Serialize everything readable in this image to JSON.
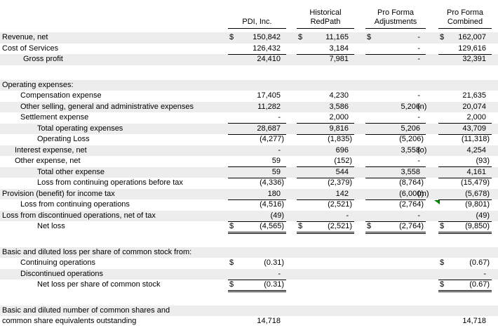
{
  "statement": {
    "columns": [
      {
        "l1": "",
        "l2": "PDI, Inc."
      },
      {
        "l1": "Historical",
        "l2": "RedPath"
      },
      {
        "l1": "Pro Forma",
        "l2": "Adjustments"
      },
      {
        "l1": "Pro Forma",
        "l2": "Combined"
      }
    ],
    "rows": [
      {
        "label": "Revenue, net",
        "ind": 3,
        "sh": 1,
        "d": [
          1,
          1,
          1,
          1
        ],
        "v": [
          "150,842",
          "11,165",
          "-",
          "162,007"
        ],
        "u": [
          0,
          0,
          0,
          0
        ]
      },
      {
        "label": "Cost of Services",
        "ind": 3,
        "sh": 0,
        "v": [
          "126,432",
          "3,184",
          "-",
          "129,616"
        ],
        "u": [
          1,
          1,
          1,
          1
        ]
      },
      {
        "label": "Gross profit",
        "ind": 33,
        "sh": 1,
        "v": [
          "24,410",
          "7,981",
          "-",
          "32,391"
        ],
        "u": [
          0,
          0,
          0,
          0
        ]
      },
      {
        "blank": true
      },
      {
        "label": "Operating expenses:",
        "ind": 3,
        "sh": 1,
        "v": [
          "",
          "",
          "",
          ""
        ]
      },
      {
        "label": "Compensation expense",
        "ind": 29,
        "sh": 0,
        "v": [
          "17,405",
          "4,230",
          "-",
          "21,635"
        ]
      },
      {
        "label": "Other selling, general and administrative expenses",
        "ind": 29,
        "sh": 1,
        "v": [
          "11,282",
          "3,586",
          "5,206",
          "20,074"
        ],
        "note": "(n)"
      },
      {
        "label": "Settlement expense",
        "ind": 29,
        "sh": 0,
        "v": [
          "-",
          "2,000",
          "-",
          "2,000"
        ],
        "u": [
          1,
          1,
          1,
          1
        ]
      },
      {
        "label": "Total operating expenses",
        "ind": 53,
        "sh": 1,
        "v": [
          "28,687",
          "9,816",
          "5,206",
          "43,709"
        ],
        "u": [
          1,
          1,
          1,
          1
        ]
      },
      {
        "label": "Operating Loss",
        "ind": 53,
        "sh": 0,
        "v": [
          "(4,277)",
          "(1,835)",
          "(5,206)",
          "(11,318)"
        ]
      },
      {
        "label": "Interest expense, net",
        "ind": 21,
        "sh": 1,
        "v": [
          "-",
          "696",
          "3,558",
          "4,254"
        ],
        "note": "(o)"
      },
      {
        "label": "Other expense, net",
        "ind": 21,
        "sh": 0,
        "v": [
          "59",
          "(152)",
          "-",
          "(93)"
        ],
        "u": [
          1,
          1,
          1,
          1
        ]
      },
      {
        "label": "Total other expense",
        "ind": 53,
        "sh": 1,
        "v": [
          "59",
          "544",
          "3,558",
          "4,161"
        ],
        "u": [
          1,
          1,
          1,
          1
        ]
      },
      {
        "label": "Loss from continuing operations before tax",
        "ind": 53,
        "sh": 0,
        "v": [
          "(4,336)",
          "(2,379)",
          "(8,764)",
          "(15,479)"
        ]
      },
      {
        "label": "Provision (benefit) for income tax",
        "ind": 3,
        "sh": 1,
        "v": [
          "180",
          "142",
          "(6,000)",
          "(5,678)"
        ],
        "u": [
          1,
          1,
          1,
          1
        ],
        "note": "(m)"
      },
      {
        "label": "Loss from continuing operations",
        "ind": 29,
        "sh": 0,
        "v": [
          "(4,516)",
          "(2,521)",
          "(2,764)",
          "(9,801)"
        ],
        "marker": 1
      },
      {
        "label": "Loss from discontinued operations, net of tax",
        "ind": 3,
        "sh": 1,
        "v": [
          "(49)",
          "-",
          "-",
          "(49)"
        ],
        "u": [
          1,
          1,
          1,
          1
        ]
      },
      {
        "label": "Net loss",
        "ind": 53,
        "sh": 0,
        "d": [
          1,
          1,
          1,
          1
        ],
        "v": [
          "(4,565)",
          "(2,521)",
          "(2,764)",
          "(9,850)"
        ],
        "u": [
          2,
          2,
          2,
          2
        ]
      },
      {
        "blank": true
      },
      {
        "label": "Basic and diluted loss per share of common stock from:",
        "ind": 3,
        "sh": 1,
        "v": [
          "",
          "",
          "",
          ""
        ]
      },
      {
        "label": "Continuing operations",
        "ind": 29,
        "sh": 0,
        "d": [
          1,
          0,
          0,
          1
        ],
        "v": [
          "(0.31)",
          "",
          "",
          "(0.67)"
        ]
      },
      {
        "label": "Discontinued operations",
        "ind": 29,
        "sh": 1,
        "v": [
          "-",
          "",
          "",
          "-"
        ],
        "u": [
          1,
          0,
          0,
          1
        ]
      },
      {
        "label": "Net loss per share of common stock",
        "ind": 53,
        "sh": 0,
        "d": [
          1,
          0,
          0,
          1
        ],
        "v": [
          "(0.31)",
          "",
          "",
          "(0.67)"
        ],
        "u": [
          2,
          0,
          0,
          2
        ]
      },
      {
        "blank": true
      },
      {
        "label": "Basic and diluted number of common shares and",
        "ind": 3,
        "sh": 1,
        "v": [
          "",
          "",
          "",
          ""
        ]
      },
      {
        "label": "common share equivalents outstanding",
        "ind": 3,
        "sh": 0,
        "v": [
          "14,718",
          "",
          "",
          "14,718"
        ]
      }
    ],
    "currency_symbol": "$",
    "footnote_refs": [
      "(n)",
      "(o)",
      "(m)"
    ]
  },
  "colors": {
    "row_shade": "#ededed",
    "rule_line": "#000000",
    "text": "#000000",
    "background": "#ffffff",
    "marker_green": "#008000"
  }
}
